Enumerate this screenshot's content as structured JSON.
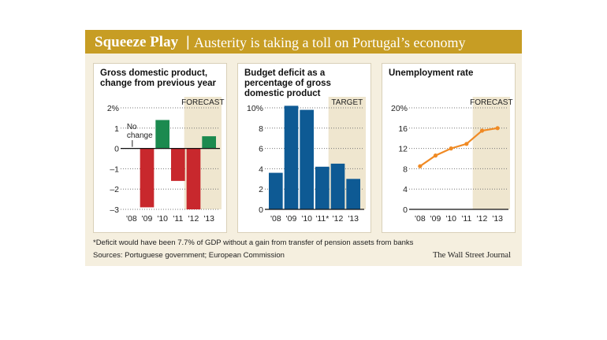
{
  "header": {
    "title": "Squeeze Play",
    "separator": "|",
    "subtitle": "Austerity is taking a toll on Portugal’s economy",
    "colors": {
      "bar": "#c79d24",
      "background": "#f5efdf"
    }
  },
  "panels": [
    {
      "title": "Gross domestic product, change from previous year"
    },
    {
      "title": "Budget deficit as a percentage of gross domestic product"
    },
    {
      "title": "Unemployment rate"
    }
  ],
  "chart_data": [
    {
      "type": "bar",
      "title": "Gross domestic product, change from previous year",
      "categories": [
        "'08",
        "'09",
        "'10",
        "'11",
        "'12",
        "'13"
      ],
      "values": [
        0,
        -2.9,
        1.4,
        -1.6,
        -3.0,
        0.6
      ],
      "ylim": [
        -3,
        2
      ],
      "yticks": [
        2,
        1,
        0,
        -1,
        -2,
        -3
      ],
      "ytick_labels": [
        "2%",
        "1",
        "0",
        "–1",
        "–2",
        "–3"
      ],
      "grid": "dotted",
      "positive_color": "#1b8a4f",
      "negative_color": "#c8282d",
      "shade_label": "FORECAST",
      "shade_from_category": 4,
      "annotation": {
        "category": 0,
        "lines": [
          "No",
          "change"
        ]
      }
    },
    {
      "type": "bar",
      "title": "Budget deficit as a percentage of gross domestic product",
      "categories": [
        "'08",
        "'09",
        "'10",
        "'11*",
        "'12",
        "'13"
      ],
      "values": [
        3.6,
        10.2,
        9.8,
        4.2,
        4.5,
        3.0
      ],
      "ylim": [
        0,
        10
      ],
      "yticks": [
        10,
        8,
        6,
        4,
        2,
        0
      ],
      "ytick_labels": [
        "10%",
        "8",
        "6",
        "4",
        "2",
        "0"
      ],
      "grid": "dotted",
      "color": "#0e5a94",
      "shade_label": "TARGET",
      "shade_from_category": 4
    },
    {
      "type": "line",
      "title": "Unemployment rate",
      "categories": [
        "'08",
        "'09",
        "'10",
        "'11",
        "'12",
        "'13"
      ],
      "values": [
        8.5,
        10.6,
        12.0,
        12.9,
        15.5,
        16.0
      ],
      "ylim": [
        0,
        20
      ],
      "yticks": [
        20,
        16,
        12,
        8,
        4,
        0
      ],
      "ytick_labels": [
        "20%",
        "16",
        "12",
        "8",
        "4",
        "0"
      ],
      "grid": "dotted",
      "color": "#f08a24",
      "shade_label": "FORECAST",
      "shade_from_category": 4
    }
  ],
  "footnote": "*Deficit would have been 7.7% of GDP without a gain from transfer of pension assets from banks",
  "sources": "Sources: Portuguese government; European Commission",
  "credit": "The Wall Street Journal"
}
